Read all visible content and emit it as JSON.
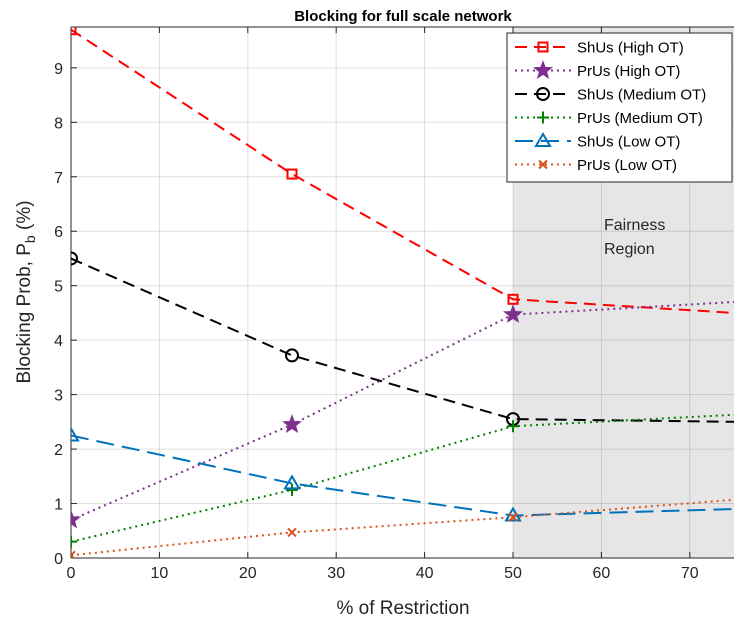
{
  "chart_data": {
    "type": "line",
    "title": "Blocking for full scale network",
    "xlabel": "% of Restriction",
    "ylabel": "Blocking Prob, P",
    "ylabel_sub": "b",
    "ylabel_unit": " (%)",
    "xlim": [
      0,
      75
    ],
    "ylim": [
      0,
      9.75
    ],
    "xticks": [
      0,
      10,
      20,
      30,
      40,
      50,
      60,
      70
    ],
    "yticks": [
      0,
      1,
      2,
      3,
      4,
      5,
      6,
      7,
      8,
      9
    ],
    "grid": true,
    "legend_position": "top-right",
    "region": {
      "x_start": 50,
      "x_end": 75,
      "color": "#e6e6e6",
      "label_lines": [
        "Fairness",
        "Region"
      ]
    },
    "series": [
      {
        "name": "ShUs (High OT)",
        "color": "#ff0000",
        "dash": "dashed",
        "marker": "square",
        "x": [
          0,
          25,
          50,
          75
        ],
        "y": [
          9.7,
          7.05,
          4.75,
          4.5
        ]
      },
      {
        "name": "PrUs (High OT)",
        "color": "#7e2f8e",
        "dash": "dotted",
        "marker": "star",
        "x": [
          0,
          25,
          50,
          75
        ],
        "y": [
          0.7,
          2.45,
          4.47,
          4.7
        ]
      },
      {
        "name": "ShUs (Medium OT)",
        "color": "#000000",
        "dash": "dashed",
        "marker": "circle",
        "x": [
          0,
          25,
          50,
          75
        ],
        "y": [
          5.5,
          3.72,
          2.55,
          2.5
        ]
      },
      {
        "name": "PrUs (Medium OT)",
        "color": "#008000",
        "dash": "dotted",
        "marker": "plus",
        "x": [
          0,
          25,
          50,
          75
        ],
        "y": [
          0.3,
          1.25,
          2.42,
          2.63
        ]
      },
      {
        "name": "ShUs (Low OT)",
        "color": "#0072bd",
        "dash": "longdash",
        "marker": "triangle",
        "x": [
          0,
          25,
          50,
          75
        ],
        "y": [
          2.25,
          1.37,
          0.78,
          0.9
        ]
      },
      {
        "name": "PrUs (Low OT)",
        "color": "#d95319",
        "dash": "dotted",
        "marker": "x",
        "x": [
          0,
          25,
          50,
          75
        ],
        "y": [
          0.05,
          0.47,
          0.75,
          1.07
        ]
      }
    ]
  }
}
